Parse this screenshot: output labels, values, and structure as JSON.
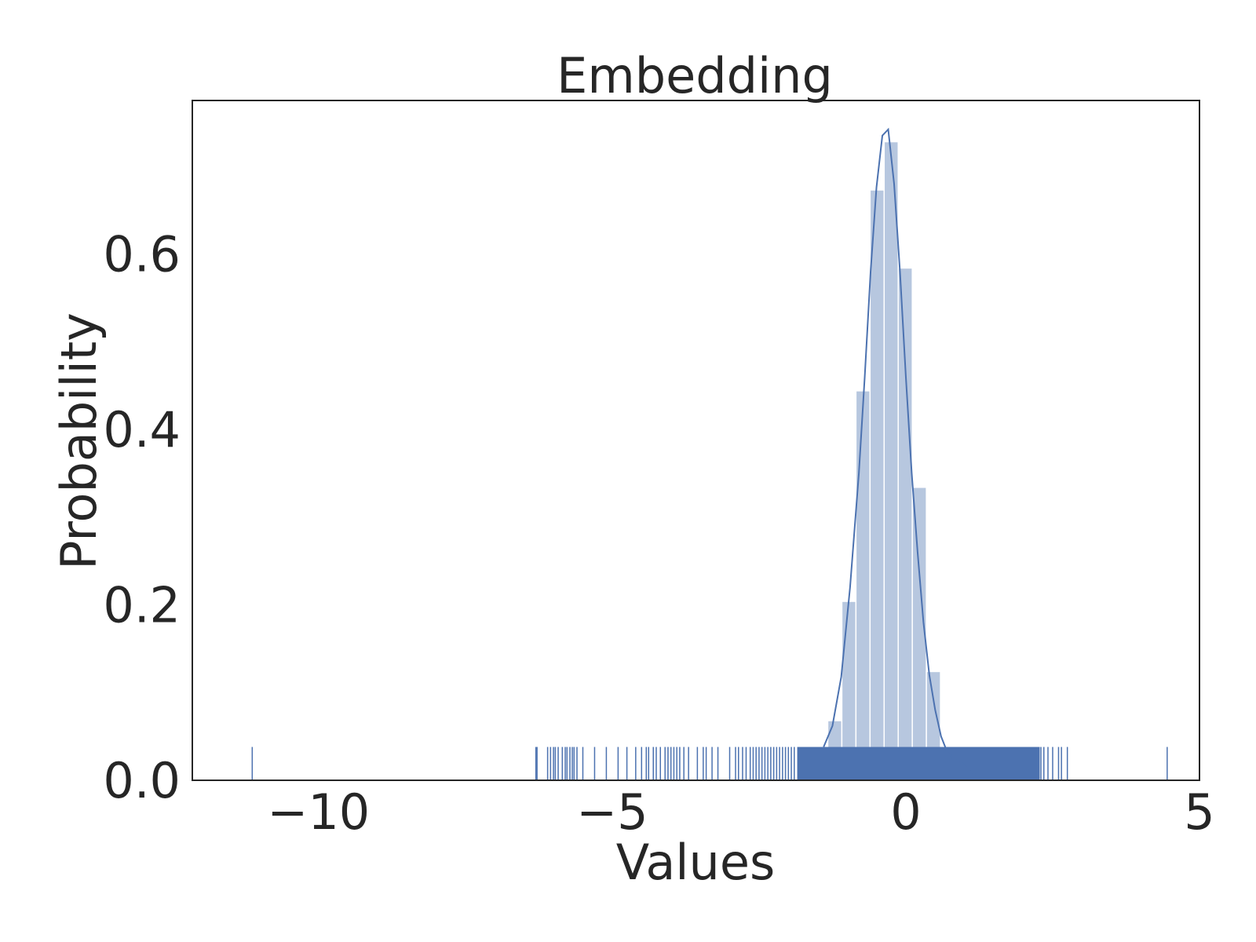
{
  "chart_data": {
    "type": "histogram",
    "title": "Embedding",
    "xlabel": "Values",
    "ylabel": "Probability",
    "xlim": [
      -12.15,
      5.0
    ],
    "ylim": [
      0.0,
      0.775
    ],
    "xticks": [
      -10,
      -5,
      0,
      5
    ],
    "xtick_labels": [
      "−10",
      "−5",
      "0",
      "5"
    ],
    "yticks": [
      0.0,
      0.2,
      0.4,
      0.6
    ],
    "ytick_labels": [
      "0.0",
      "0.2",
      "0.4",
      "0.6"
    ],
    "grid": false,
    "colors": {
      "bar": "#4c72b0",
      "kde": "#4c72b0",
      "rug": "#4c72b0",
      "text": "#262626"
    },
    "histogram_bins": [
      {
        "x0": -1.33,
        "x1": -1.09,
        "value": 0.068
      },
      {
        "x0": -1.09,
        "x1": -0.85,
        "value": 0.204
      },
      {
        "x0": -0.85,
        "x1": -0.61,
        "value": 0.444
      },
      {
        "x0": -0.61,
        "x1": -0.37,
        "value": 0.673
      },
      {
        "x0": -0.37,
        "x1": -0.13,
        "value": 0.728
      },
      {
        "x0": -0.13,
        "x1": 0.11,
        "value": 0.584
      },
      {
        "x0": 0.11,
        "x1": 0.35,
        "value": 0.334
      },
      {
        "x0": 0.35,
        "x1": 0.59,
        "value": 0.124
      }
    ],
    "kde": {
      "x": [
        -1.4,
        -1.25,
        -1.1,
        -0.95,
        -0.8,
        -0.7,
        -0.6,
        -0.5,
        -0.4,
        -0.3,
        -0.2,
        -0.1,
        0.0,
        0.1,
        0.2,
        0.3,
        0.4,
        0.5,
        0.6,
        0.7,
        0.8,
        0.95,
        1.1,
        1.25,
        1.4
      ],
      "y": [
        0.038,
        0.062,
        0.118,
        0.22,
        0.35,
        0.46,
        0.58,
        0.676,
        0.735,
        0.742,
        0.68,
        0.58,
        0.46,
        0.35,
        0.26,
        0.18,
        0.12,
        0.08,
        0.05,
        0.033,
        0.025,
        0.02,
        0.01,
        0.004,
        0.0
      ]
    },
    "rug": {
      "height": 0.038,
      "dense_range": [
        -1.85,
        2.28
      ],
      "values": [
        -11.13,
        -6.3,
        -6.28,
        -6.1,
        -6.05,
        -6.0,
        -5.97,
        -5.92,
        -5.85,
        -5.8,
        -5.77,
        -5.72,
        -5.68,
        -5.65,
        -5.6,
        -5.5,
        -5.3,
        -5.1,
        -4.9,
        -4.75,
        -4.6,
        -4.5,
        -4.42,
        -4.38,
        -4.3,
        -4.25,
        -4.18,
        -4.1,
        -4.05,
        -4.0,
        -3.95,
        -3.9,
        -3.85,
        -3.78,
        -3.7,
        -3.55,
        -3.45,
        -3.4,
        -3.3,
        -3.2,
        -3.0,
        -2.9,
        -2.85,
        -2.78,
        -2.72,
        -2.65,
        -2.6,
        -2.55,
        -2.5,
        -2.45,
        -2.4,
        -2.35,
        -2.3,
        -2.25,
        -2.2,
        -2.15,
        -2.1,
        -2.05,
        -2.0,
        -1.95,
        -1.9,
        2.3,
        2.35,
        2.42,
        2.5,
        2.6,
        2.65,
        2.75,
        4.45
      ]
    }
  }
}
